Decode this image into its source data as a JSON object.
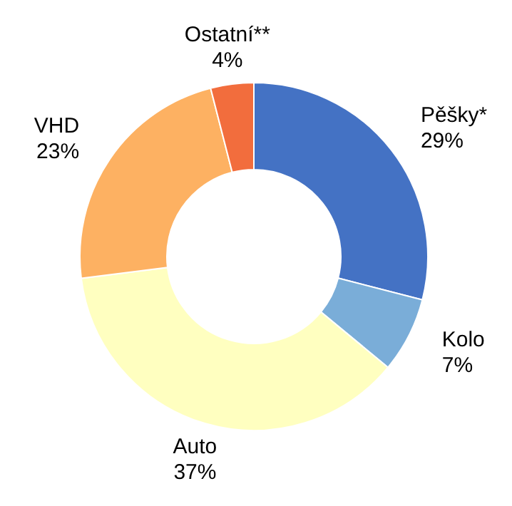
{
  "chart_data": {
    "type": "donut",
    "categories": [
      "Pěšky*",
      "Kolo",
      "Auto",
      "VHD",
      "Ostatní**"
    ],
    "values": [
      29,
      7,
      37,
      23,
      4
    ],
    "colors": [
      "#4472c4",
      "#7aadd8",
      "#ffffc0",
      "#fdb162",
      "#f26d3d"
    ],
    "value_labels": [
      "29%",
      "7%",
      "37%",
      "23%",
      "4%"
    ]
  }
}
